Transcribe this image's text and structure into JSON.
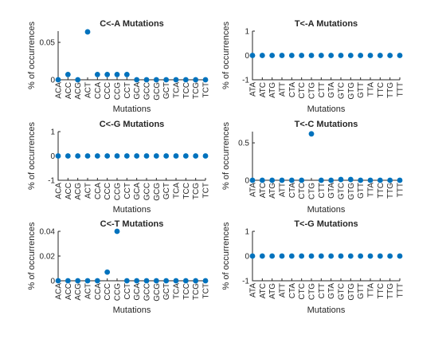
{
  "chart_data": [
    {
      "type": "scatter",
      "title": "C<-A Mutations",
      "xlabel": "Mutations",
      "ylabel": "% of occurrences",
      "categories": [
        "ACA",
        "ACC",
        "ACG",
        "ACT",
        "CCA",
        "CCC",
        "CCG",
        "CCT",
        "GCA",
        "GCC",
        "GCG",
        "GCT",
        "TCA",
        "TCC",
        "TCG",
        "TCT"
      ],
      "values": [
        0,
        0.007,
        0,
        0.064,
        0.007,
        0.007,
        0.007,
        0.007,
        0,
        0,
        0,
        0,
        0,
        0,
        0,
        0
      ],
      "ylim": [
        0,
        0.065
      ],
      "yticks": [
        0,
        0.05
      ],
      "ytick_labels": [
        "0",
        "0.05"
      ],
      "grid": false,
      "marker_color": "#0072BD"
    },
    {
      "type": "scatter",
      "title": "T<-A Mutations",
      "xlabel": "Mutations",
      "ylabel": "% of occurrences",
      "categories": [
        "ATA",
        "ATC",
        "ATG",
        "ATT",
        "CTA",
        "CTC",
        "CTG",
        "CTT",
        "GTA",
        "GTC",
        "GTG",
        "GTT",
        "TTA",
        "TTC",
        "TTG",
        "TTT"
      ],
      "values": [
        0,
        0,
        0,
        0,
        0,
        0,
        0,
        0,
        0,
        0,
        0,
        0,
        0,
        0,
        0,
        0
      ],
      "ylim": [
        -1,
        1
      ],
      "yticks": [
        -1,
        0,
        1
      ],
      "ytick_labels": [
        "-1",
        "0",
        "1"
      ],
      "grid": false,
      "marker_color": "#0072BD"
    },
    {
      "type": "scatter",
      "title": "C<-G Mutations",
      "xlabel": "Mutations",
      "ylabel": "% of occurrences",
      "categories": [
        "ACA",
        "ACC",
        "ACG",
        "ACT",
        "CCA",
        "CCC",
        "CCG",
        "CCT",
        "GCA",
        "GCC",
        "GCG",
        "GCT",
        "TCA",
        "TCC",
        "TCG",
        "TCT"
      ],
      "values": [
        0,
        0,
        0,
        0,
        0,
        0,
        0,
        0,
        0,
        0,
        0,
        0,
        0,
        0,
        0,
        0
      ],
      "ylim": [
        -1,
        1
      ],
      "yticks": [
        -1,
        0,
        1
      ],
      "ytick_labels": [
        "-1",
        "0",
        "1"
      ],
      "grid": false,
      "marker_color": "#0072BD"
    },
    {
      "type": "scatter",
      "title": "T<-C Mutations",
      "xlabel": "Mutations",
      "ylabel": "% of occurrences",
      "categories": [
        "ATA",
        "ATC",
        "ATG",
        "ATT",
        "CTA",
        "CTC",
        "CTG",
        "CTT",
        "GTA",
        "GTC",
        "GTG",
        "GTT",
        "TTA",
        "TTC",
        "TTG",
        "TTT"
      ],
      "values": [
        0,
        0,
        0,
        0,
        0,
        0,
        0.62,
        0,
        0,
        0.01,
        0.01,
        0,
        0,
        0,
        0,
        0
      ],
      "ylim": [
        0,
        0.65
      ],
      "yticks": [
        0,
        0.5
      ],
      "ytick_labels": [
        "0",
        "0.5"
      ],
      "grid": false,
      "marker_color": "#0072BD"
    },
    {
      "type": "scatter",
      "title": "C<-T Mutations",
      "xlabel": "Mutations",
      "ylabel": "% of occurrences",
      "categories": [
        "ACA",
        "ACC",
        "ACG",
        "ACT",
        "CCA",
        "CCC",
        "CCG",
        "CCT",
        "GCA",
        "GCC",
        "GCG",
        "GCT",
        "TCA",
        "TCC",
        "TCG",
        "TCT"
      ],
      "values": [
        0,
        0,
        0,
        0,
        0,
        0.007,
        0.04,
        0,
        0,
        0,
        0,
        0,
        0,
        0,
        0,
        0
      ],
      "ylim": [
        0,
        0.04
      ],
      "yticks": [
        0,
        0.02,
        0.04
      ],
      "ytick_labels": [
        "0",
        "0.02",
        "0.04"
      ],
      "grid": false,
      "marker_color": "#0072BD"
    },
    {
      "type": "scatter",
      "title": "T<-G Mutations",
      "xlabel": "Mutations",
      "ylabel": "% of occurrences",
      "categories": [
        "ATA",
        "ATC",
        "ATG",
        "ATT",
        "CTA",
        "CTC",
        "CTG",
        "CTT",
        "GTA",
        "GTC",
        "GTG",
        "GTT",
        "TTA",
        "TTC",
        "TTG",
        "TTT"
      ],
      "values": [
        0,
        0,
        0,
        0,
        0,
        0,
        0,
        0,
        0,
        0,
        0,
        0,
        0,
        0,
        0,
        0
      ],
      "ylim": [
        -1,
        1
      ],
      "yticks": [
        -1,
        0,
        1
      ],
      "ytick_labels": [
        "-1",
        "0",
        "1"
      ],
      "grid": false,
      "marker_color": "#0072BD"
    }
  ]
}
